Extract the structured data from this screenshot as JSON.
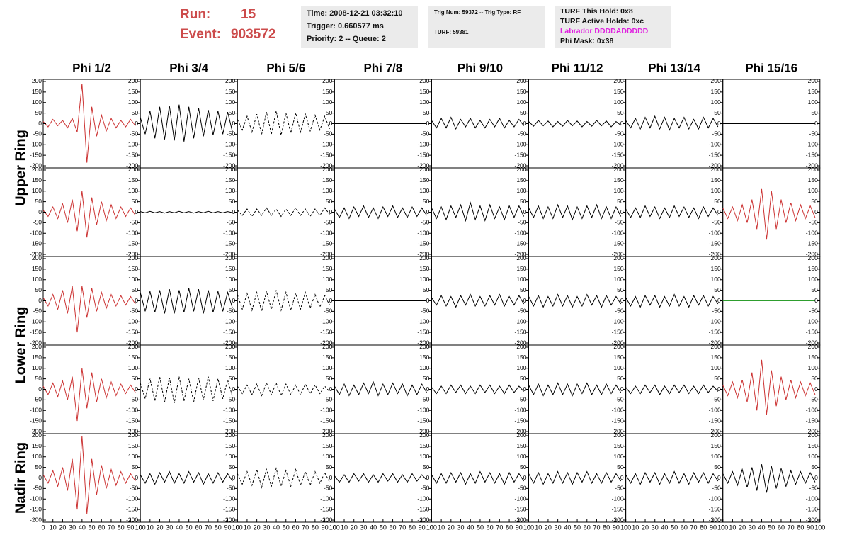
{
  "header": {
    "run_label": "Run:",
    "run": 15,
    "event_label": "Event:",
    "event": 903572,
    "time": "Time: 2008-12-21 03:32:10",
    "trigger": "Trigger: 0.660577 ms",
    "priority": "Priority: 2 -- Queue: 2",
    "trig_num": "Trig Num: 59372 -- Trig Type: RF",
    "turf": "TURF: 59381",
    "turf_hold": "TURF This Hold: 0x8",
    "turf_active": "TURF Active Holds: 0xc",
    "labrador": "Labrador DDDDADDDDD",
    "phi_mask": "Phi Mask: 0x38"
  },
  "chart_data": {
    "type": "line",
    "columns": [
      "Phi 1/2",
      "Phi 3/4",
      "Phi 5/6",
      "Phi 7/8",
      "Phi 9/10",
      "Phi 11/12",
      "Phi 13/14",
      "Phi 15/16"
    ],
    "ring_labels": [
      "Upper Ring",
      "Lower Ring",
      "Nadir Ring"
    ],
    "x": [
      0,
      5,
      10,
      15,
      20,
      25,
      30,
      35,
      40,
      45,
      50,
      55,
      60,
      65,
      70,
      75,
      80,
      85,
      90,
      95
    ],
    "xlim": [
      0,
      100
    ],
    "xticks": [
      0,
      10,
      20,
      30,
      40,
      50,
      60,
      70,
      80,
      90,
      100
    ],
    "ylim": [
      -210,
      210
    ],
    "yticks": [
      200,
      150,
      100,
      50,
      0,
      -50,
      -100,
      -150,
      -200
    ],
    "rows": [
      [
        {
          "color": "#cc3333",
          "values": [
            10,
            -15,
            20,
            -10,
            15,
            -20,
            25,
            -40,
            190,
            -185,
            80,
            -60,
            40,
            -35,
            25,
            -20,
            15,
            -15,
            20,
            -10
          ]
        },
        {
          "color": "#000000",
          "values": [
            30,
            -50,
            60,
            -70,
            80,
            -75,
            85,
            -80,
            90,
            -85,
            80,
            -70,
            75,
            -60,
            65,
            -55,
            60,
            -50,
            55,
            -40
          ]
        },
        {
          "color": "#000000",
          "dash": true,
          "values": [
            20,
            -30,
            35,
            -40,
            45,
            -50,
            55,
            -50,
            60,
            -55,
            50,
            -45,
            50,
            -40,
            45,
            -35,
            40,
            -30,
            35,
            -25
          ]
        },
        {
          "color": "#000000",
          "values": [
            0,
            0,
            0,
            0,
            0,
            0,
            0,
            0,
            0,
            0,
            0,
            0,
            0,
            0,
            0,
            0,
            0,
            0,
            0,
            0
          ]
        },
        {
          "color": "#000000",
          "values": [
            15,
            -20,
            25,
            -20,
            30,
            -25,
            20,
            -15,
            25,
            -20,
            15,
            -20,
            20,
            -15,
            25,
            -20,
            15,
            -15,
            20,
            -10
          ]
        },
        {
          "color": "#000000",
          "values": [
            10,
            -12,
            15,
            -10,
            12,
            -15,
            10,
            -12,
            15,
            -10,
            12,
            -15,
            10,
            -12,
            15,
            -10,
            12,
            -15,
            10,
            -8
          ]
        },
        {
          "color": "#000000",
          "values": [
            15,
            -20,
            25,
            -25,
            30,
            -20,
            35,
            -25,
            30,
            -30,
            25,
            -20,
            30,
            -25,
            20,
            -25,
            30,
            -20,
            25,
            -15
          ]
        },
        {
          "color": "#000000",
          "values": [
            0,
            0,
            0,
            0,
            0,
            0,
            0,
            0,
            0,
            0,
            0,
            0,
            0,
            0,
            0,
            0,
            0,
            0,
            0,
            0
          ]
        }
      ],
      [
        {
          "color": "#cc3333",
          "values": [
            10,
            -20,
            25,
            -30,
            40,
            -50,
            60,
            -90,
            100,
            -120,
            70,
            -60,
            50,
            -40,
            35,
            -30,
            25,
            -20,
            20,
            -15
          ]
        },
        {
          "color": "#000000",
          "values": [
            3,
            -3,
            4,
            -3,
            3,
            -4,
            3,
            -3,
            4,
            -3,
            3,
            -4,
            3,
            -3,
            4,
            -3,
            3,
            -3,
            3,
            -2
          ]
        },
        {
          "color": "#000000",
          "dash": true,
          "values": [
            10,
            -15,
            15,
            -20,
            15,
            -15,
            20,
            -15,
            15,
            -20,
            15,
            -15,
            20,
            -15,
            15,
            -20,
            15,
            -15,
            20,
            -10
          ]
        },
        {
          "color": "#000000",
          "values": [
            15,
            -25,
            20,
            -30,
            25,
            -20,
            30,
            -25,
            20,
            -30,
            25,
            -20,
            30,
            -25,
            20,
            -25,
            25,
            -20,
            20,
            -15
          ]
        },
        {
          "color": "#000000",
          "values": [
            20,
            -30,
            25,
            -35,
            30,
            -25,
            35,
            -40,
            45,
            -35,
            30,
            -40,
            35,
            -30,
            25,
            -35,
            30,
            -25,
            30,
            -20
          ]
        },
        {
          "color": "#000000",
          "values": [
            20,
            -25,
            30,
            -30,
            25,
            -30,
            35,
            -25,
            30,
            -35,
            25,
            -30,
            30,
            -25,
            35,
            -30,
            25,
            -30,
            25,
            -20
          ]
        },
        {
          "color": "#000000",
          "values": [
            15,
            -25,
            20,
            -25,
            30,
            -20,
            25,
            -30,
            20,
            -25,
            30,
            -20,
            25,
            -25,
            20,
            -30,
            25,
            -20,
            20,
            -15
          ]
        },
        {
          "color": "#cc3333",
          "values": [
            20,
            -30,
            25,
            -40,
            35,
            -50,
            60,
            -80,
            110,
            -130,
            100,
            -80,
            60,
            -50,
            45,
            -40,
            35,
            -30,
            30,
            -25
          ]
        }
      ],
      [
        {
          "color": "#cc3333",
          "values": [
            15,
            -25,
            30,
            -40,
            50,
            -60,
            70,
            -150,
            70,
            -80,
            60,
            -50,
            40,
            -35,
            30,
            -25,
            25,
            -20,
            20,
            -15
          ]
        },
        {
          "color": "#000000",
          "values": [
            40,
            -50,
            45,
            -55,
            50,
            -60,
            55,
            -60,
            50,
            -55,
            60,
            -50,
            55,
            -60,
            50,
            -55,
            45,
            -50,
            40,
            -35
          ]
        },
        {
          "color": "#000000",
          "dash": true,
          "values": [
            30,
            -40,
            35,
            -45,
            40,
            -50,
            45,
            -40,
            50,
            -45,
            40,
            -45,
            35,
            -40,
            40,
            -35,
            30,
            -30,
            25,
            -20
          ]
        },
        {
          "color": "#000000",
          "values": [
            0,
            0,
            0,
            0,
            0,
            0,
            0,
            0,
            0,
            0,
            0,
            0,
            0,
            0,
            0,
            0,
            0,
            0,
            0,
            0
          ]
        },
        {
          "color": "#000000",
          "values": [
            15,
            -20,
            25,
            -25,
            20,
            -30,
            25,
            -20,
            30,
            -25,
            20,
            -25,
            25,
            -20,
            30,
            -25,
            20,
            -20,
            25,
            -15
          ]
        },
        {
          "color": "#000000",
          "values": [
            20,
            -25,
            25,
            -30,
            20,
            -25,
            30,
            -25,
            25,
            -30,
            20,
            -25,
            30,
            -20,
            25,
            -30,
            25,
            -20,
            20,
            -15
          ]
        },
        {
          "color": "#000000",
          "values": [
            15,
            -25,
            20,
            -30,
            25,
            -20,
            25,
            -30,
            20,
            -25,
            30,
            -25,
            20,
            -30,
            25,
            -20,
            25,
            -25,
            20,
            -15
          ]
        },
        {
          "color": "#2e9e2e",
          "values": [
            0,
            0,
            0,
            0,
            0,
            0,
            0,
            0,
            0,
            0,
            0,
            0,
            0,
            0,
            0,
            0,
            0,
            0,
            0,
            0
          ]
        }
      ],
      [
        {
          "color": "#cc3333",
          "values": [
            15,
            -25,
            30,
            -35,
            40,
            -50,
            60,
            -150,
            100,
            -90,
            80,
            -60,
            50,
            -40,
            35,
            -30,
            25,
            -20,
            20,
            -15
          ]
        },
        {
          "color": "#000000",
          "dash": true,
          "values": [
            30,
            -45,
            50,
            -55,
            60,
            -60,
            55,
            -65,
            60,
            -55,
            50,
            -60,
            55,
            -50,
            60,
            -55,
            50,
            -45,
            45,
            -35
          ]
        },
        {
          "color": "#000000",
          "dash": true,
          "values": [
            15,
            -20,
            20,
            -25,
            25,
            -30,
            30,
            -25,
            30,
            -30,
            25,
            -25,
            20,
            -25,
            25,
            -20,
            20,
            -20,
            15,
            -10
          ]
        },
        {
          "color": "#000000",
          "values": [
            15,
            -25,
            25,
            -30,
            20,
            -25,
            30,
            -20,
            35,
            -30,
            25,
            -25,
            30,
            -20,
            25,
            -30,
            20,
            -25,
            25,
            -15
          ]
        },
        {
          "color": "#000000",
          "values": [
            10,
            -20,
            15,
            -20,
            20,
            -15,
            20,
            -20,
            15,
            -20,
            20,
            -15,
            20,
            -20,
            15,
            -20,
            20,
            -15,
            15,
            -10
          ]
        },
        {
          "color": "#000000",
          "values": [
            20,
            -25,
            25,
            -30,
            20,
            -25,
            30,
            -25,
            25,
            -30,
            25,
            -20,
            30,
            -25,
            20,
            -25,
            25,
            -20,
            20,
            -15
          ]
        },
        {
          "color": "#000000",
          "values": [
            10,
            -20,
            15,
            -20,
            20,
            -15,
            20,
            -25,
            15,
            -20,
            20,
            -15,
            20,
            -20,
            15,
            -20,
            20,
            -15,
            15,
            -10
          ]
        },
        {
          "color": "#cc3333",
          "values": [
            20,
            -30,
            35,
            -40,
            45,
            -60,
            80,
            -100,
            140,
            -120,
            90,
            -80,
            60,
            -50,
            45,
            -40,
            35,
            -30,
            30,
            -25
          ]
        }
      ],
      [
        {
          "color": "#cc3333",
          "values": [
            15,
            -25,
            35,
            -40,
            50,
            -60,
            90,
            -150,
            200,
            -170,
            90,
            -80,
            60,
            -50,
            40,
            -35,
            30,
            -25,
            20,
            -15
          ]
        },
        {
          "color": "#000000",
          "values": [
            15,
            -25,
            20,
            -30,
            25,
            -20,
            30,
            -25,
            20,
            -25,
            30,
            -20,
            25,
            -30,
            20,
            -25,
            25,
            -20,
            20,
            -15
          ]
        },
        {
          "color": "#000000",
          "dash": true,
          "values": [
            20,
            -30,
            30,
            -35,
            40,
            -45,
            40,
            -40,
            45,
            -40,
            35,
            -40,
            40,
            -35,
            30,
            -35,
            30,
            -25,
            25,
            -20
          ]
        },
        {
          "color": "#000000",
          "values": [
            10,
            -20,
            15,
            -20,
            20,
            -15,
            20,
            -20,
            15,
            -20,
            20,
            -15,
            20,
            -20,
            15,
            -20,
            20,
            -15,
            15,
            -10
          ]
        },
        {
          "color": "#000000",
          "values": [
            15,
            -25,
            20,
            -25,
            25,
            -20,
            25,
            -30,
            20,
            -25,
            30,
            -20,
            25,
            -25,
            20,
            -30,
            25,
            -20,
            20,
            -15
          ]
        },
        {
          "color": "#000000",
          "values": [
            20,
            -25,
            25,
            -30,
            20,
            -25,
            30,
            -25,
            25,
            -30,
            25,
            -20,
            30,
            -25,
            20,
            -25,
            25,
            -20,
            20,
            -15
          ]
        },
        {
          "color": "#000000",
          "values": [
            15,
            -25,
            20,
            -30,
            25,
            -20,
            25,
            -30,
            20,
            -25,
            30,
            -25,
            20,
            -30,
            25,
            -20,
            25,
            -25,
            20,
            -15
          ]
        },
        {
          "color": "#000000",
          "values": [
            20,
            -25,
            30,
            -35,
            40,
            -45,
            50,
            -60,
            65,
            -70,
            55,
            -50,
            45,
            -40,
            35,
            -30,
            30,
            -25,
            25,
            -20
          ]
        }
      ]
    ]
  }
}
